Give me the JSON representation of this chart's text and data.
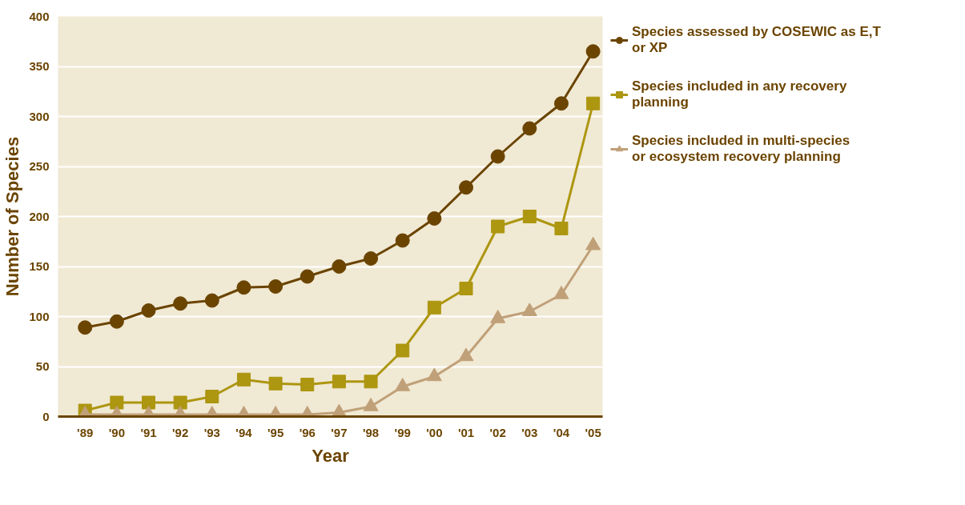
{
  "chart_data": {
    "type": "line",
    "xlabel": "Year",
    "ylabel": "Number of Species",
    "categories": [
      "'89",
      "'90",
      "'91",
      "'92",
      "'93",
      "'94",
      "'95",
      "'96",
      "'97",
      "'98",
      "'99",
      "'00",
      "'01",
      "'02",
      "'03",
      "'04",
      "'05"
    ],
    "series": [
      {
        "name": "Species assessed by COSEWIC as E,T or XP",
        "color": "#6b4400",
        "marker": "circle",
        "values": [
          89,
          95,
          106,
          113,
          116,
          129,
          130,
          140,
          150,
          158,
          176,
          198,
          229,
          260,
          288,
          313,
          365
        ]
      },
      {
        "name": "Species included in any recovery planning",
        "color": "#ad9610",
        "marker": "square",
        "values": [
          6,
          14,
          14,
          14,
          20,
          37,
          33,
          32,
          35,
          35,
          66,
          109,
          128,
          190,
          200,
          188,
          313
        ]
      },
      {
        "name": "Species included in multi-species or ecosystem recovery planning",
        "color": "#c0a078",
        "marker": "triangle",
        "values": [
          2,
          2,
          2,
          2,
          2,
          2,
          2,
          2,
          4,
          10,
          30,
          40,
          60,
          98,
          105,
          122,
          171
        ]
      }
    ],
    "ylim": [
      0,
      400
    ],
    "yticks": [
      0,
      50,
      100,
      150,
      200,
      250,
      300,
      350,
      400
    ],
    "grid": "y",
    "legend": "top right",
    "line_style": "solid"
  }
}
